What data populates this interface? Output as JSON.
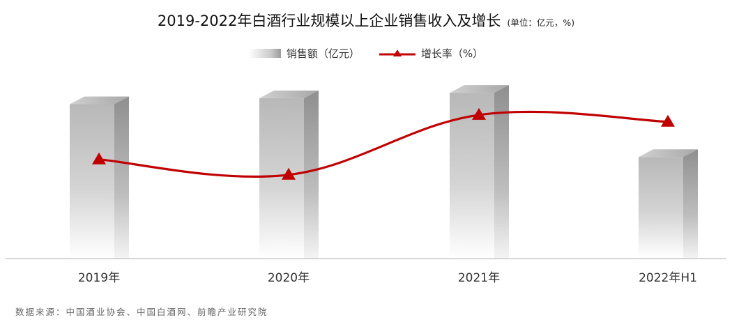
{
  "title": "2019-2022年白酒行业规模以上企业销售收入及增长",
  "unit": "(单位：亿元，%)",
  "legend": {
    "bar_label": "销售额（亿元）",
    "line_label": "增长率（%）"
  },
  "source": "数据来源：中国酒业协会、中国白酒网、前瞻产业研究院",
  "colors": {
    "line": "#c00000",
    "bar_light": "#ffffff",
    "bar_dark": "#b0b0b0"
  },
  "chart_data": {
    "type": "bar",
    "categories": [
      "2019年",
      "2020年",
      "2021年",
      "2022年H1"
    ],
    "series": [
      {
        "name": "销售额（亿元）",
        "type": "bar",
        "values": [
          5618,
          5836,
          6033,
          3696
        ]
      },
      {
        "name": "增长率（%）",
        "type": "line",
        "values": [
          8.2,
          4.6,
          18.6,
          17.0
        ]
      }
    ],
    "bar_axis_range": [
      0,
      7000
    ],
    "line_axis_range": [
      -15,
      30
    ],
    "grid": false,
    "data_labels": false,
    "legend_position": "top-center"
  }
}
